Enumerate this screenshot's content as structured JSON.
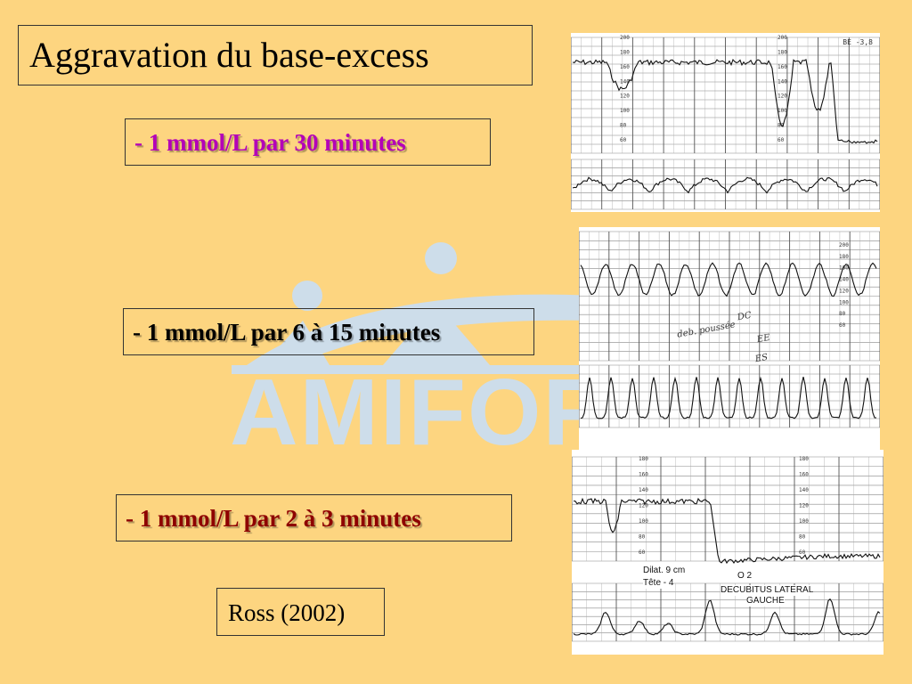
{
  "slide": {
    "title": "Aggravation du base-excess",
    "rates": [
      {
        "text": "- 1 mmol/L par 30 minutes",
        "color": "#B400B8"
      },
      {
        "text": "- 1 mmol/L par 6 à 15 minutes",
        "color": "#000000"
      },
      {
        "text": "- 1 mmol/L par 2 à 3 minutes",
        "color": "#8E0000"
      }
    ],
    "reference": "Ross (2002)",
    "watermark": "AMIFOR",
    "background": "#FDD580"
  },
  "tracings": [
    {
      "fhr_labels": [
        "200",
        "180",
        "160",
        "140",
        "120",
        "100",
        "80",
        "60"
      ],
      "corner_note": "BE -3,8"
    },
    {
      "fhr_labels": [
        "200",
        "180",
        "160",
        "140",
        "120",
        "100",
        "80",
        "60"
      ],
      "handwriting": [
        "deb. poussée",
        "DC",
        "EE",
        "ES"
      ]
    },
    {
      "fhr_labels": [
        "180",
        "160",
        "140",
        "120",
        "100",
        "80",
        "60"
      ],
      "annotations": {
        "dilat": "Dilat.   9 cm",
        "tete": "Tête     - 4",
        "o2": "O 2",
        "position1": "DECUBITUS LATERAL",
        "position2": "GAUCHE"
      }
    }
  ]
}
